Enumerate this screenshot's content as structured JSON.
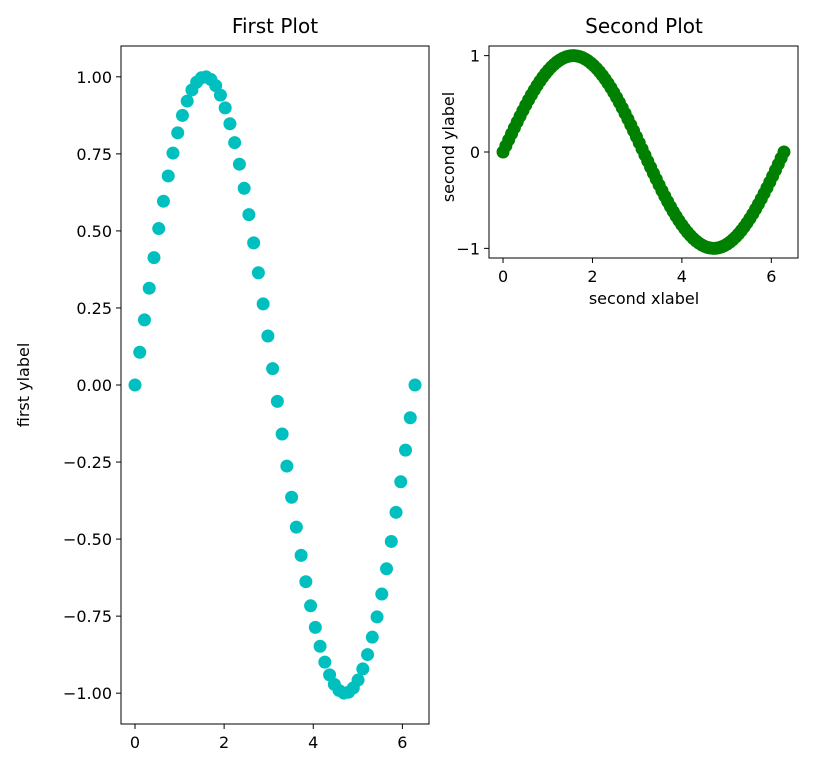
{
  "chart_data": [
    {
      "type": "scatter",
      "title": "First Plot",
      "xlabel": "",
      "ylabel": "first ylabel",
      "xlim": [
        -0.314,
        6.597
      ],
      "ylim": [
        -1.1,
        1.1
      ],
      "xticks": [
        0,
        2,
        4,
        6
      ],
      "xtick_labels": [
        "0",
        "2",
        "4",
        "6"
      ],
      "yticks": [
        1.0,
        0.75,
        0.5,
        0.25,
        0.0,
        -0.25,
        -0.5,
        -0.75,
        -1.0
      ],
      "ytick_labels": [
        "1.00",
        "0.75",
        "0.50",
        "0.25",
        "0.00",
        "−0.25",
        "−0.50",
        "−0.75",
        "−1.00"
      ],
      "grid": false,
      "color": "#00bfbf",
      "series": [
        {
          "function": "sin(x)",
          "x_range": [
            0,
            6.2832
          ],
          "n_points": 60
        }
      ]
    },
    {
      "type": "scatter",
      "title": "Second Plot",
      "xlabel": "second xlabel",
      "ylabel": "second ylabel",
      "xlim": [
        -0.314,
        6.597
      ],
      "ylim": [
        -1.1,
        1.1
      ],
      "xticks": [
        0,
        2,
        4,
        6
      ],
      "xtick_labels": [
        "0",
        "2",
        "4",
        "6"
      ],
      "yticks": [
        1,
        0,
        -1
      ],
      "ytick_labels": [
        "1",
        "0",
        "−1"
      ],
      "grid": false,
      "color": "#008000",
      "series": [
        {
          "function": "sin(x)",
          "x_range": [
            0,
            6.2832
          ],
          "n_points": 100
        }
      ]
    }
  ]
}
